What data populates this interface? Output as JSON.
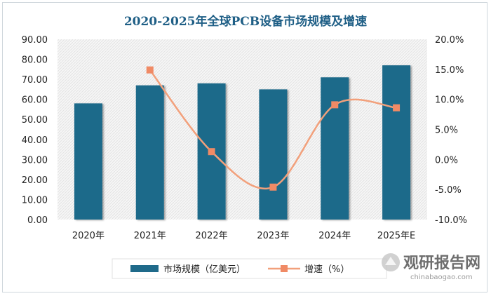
{
  "chart_data": {
    "type": "bar",
    "title": "2020-2025年全球PCB设备市场规模及增速",
    "categories": [
      "2020年",
      "2021年",
      "2022年",
      "2023年",
      "2024年",
      "2025年E"
    ],
    "series": [
      {
        "name": "市场规模（亿美元）",
        "type": "bar",
        "axis": "left",
        "values": [
          58.0,
          67.0,
          68.0,
          65.0,
          71.0,
          77.0
        ]
      },
      {
        "name": "增速（%）",
        "type": "line",
        "axis": "right",
        "values": [
          null,
          14.9,
          1.3,
          -4.6,
          9.1,
          8.6
        ]
      }
    ],
    "y_left": {
      "min": 0,
      "max": 90,
      "step": 10,
      "tick_labels": [
        "0.00",
        "10.00",
        "20.00",
        "30.00",
        "40.00",
        "50.00",
        "60.00",
        "70.00",
        "80.00",
        "90.00"
      ]
    },
    "y_right": {
      "min": -10,
      "max": 20,
      "step": 5,
      "tick_labels": [
        "-10.0%",
        "-5.0%",
        "0.0%",
        "5.0%",
        "10.0%",
        "15.0%",
        "20.0%"
      ]
    },
    "grid": false,
    "legend_position": "bottom",
    "colors": {
      "bar": "#1f6a8a",
      "line": "#f2a07b",
      "marker": "#f08a65",
      "title": "#1f5f86",
      "plot_bg": "#f3f3f3"
    }
  },
  "watermark": {
    "cn": "观研报告网",
    "en": "chinabaogao.com"
  }
}
